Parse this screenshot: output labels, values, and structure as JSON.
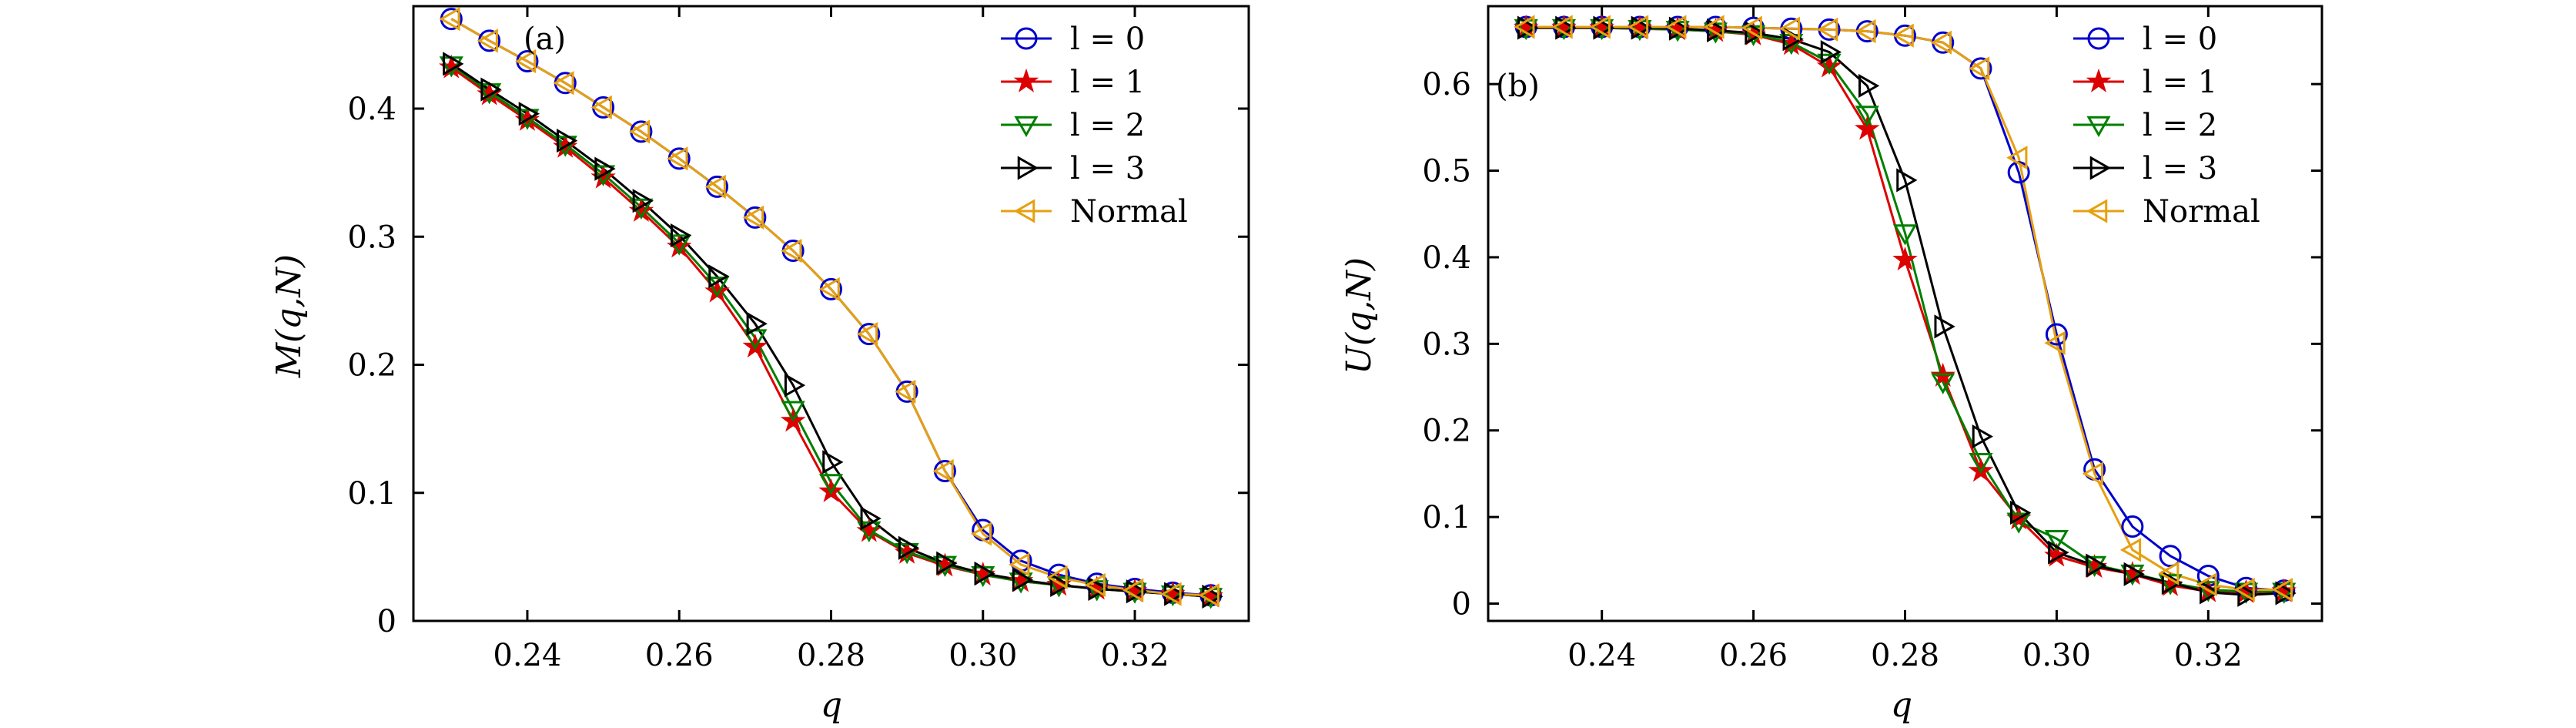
{
  "colors": {
    "l0": "#0000cc",
    "l1": "#dd0000",
    "l2": "#007f00",
    "l3": "#000000",
    "normal": "#e6a010"
  },
  "chart_data": [
    {
      "type": "line",
      "panel_label": "(a)",
      "xlabel": "q",
      "ylabel": "M(q,N)",
      "xlim": [
        0.225,
        0.335
      ],
      "ylim": [
        0.0,
        0.48
      ],
      "xticks": [
        "0.24",
        "0.26",
        "0.28",
        "0.30",
        "0.32"
      ],
      "yticks": [
        "0",
        "0.1",
        "0.2",
        "0.3",
        "0.4"
      ],
      "legend_position": "top-right",
      "x": [
        0.23,
        0.235,
        0.24,
        0.245,
        0.25,
        0.255,
        0.26,
        0.265,
        0.27,
        0.275,
        0.28,
        0.285,
        0.29,
        0.295,
        0.3,
        0.305,
        0.31,
        0.315,
        0.32,
        0.325,
        0.33
      ],
      "series": [
        {
          "name": "l = 0",
          "marker": "circle",
          "color_key": "l0",
          "values": [
            0.47,
            0.453,
            0.437,
            0.42,
            0.401,
            0.382,
            0.361,
            0.339,
            0.315,
            0.289,
            0.259,
            0.224,
            0.179,
            0.117,
            0.071,
            0.047,
            0.036,
            0.029,
            0.025,
            0.022,
            0.02
          ]
        },
        {
          "name": "l = 1",
          "marker": "star",
          "color_key": "l1",
          "values": [
            0.432,
            0.411,
            0.391,
            0.37,
            0.346,
            0.32,
            0.292,
            0.257,
            0.214,
            0.156,
            0.101,
            0.07,
            0.053,
            0.043,
            0.036,
            0.031,
            0.028,
            0.025,
            0.023,
            0.021,
            0.019
          ]
        },
        {
          "name": "l = 2",
          "marker": "triangle-down",
          "color_key": "l2",
          "values": [
            0.434,
            0.413,
            0.393,
            0.372,
            0.349,
            0.323,
            0.295,
            0.262,
            0.221,
            0.165,
            0.108,
            0.071,
            0.054,
            0.044,
            0.036,
            0.031,
            0.028,
            0.025,
            0.023,
            0.021,
            0.019
          ]
        },
        {
          "name": "l = 3",
          "marker": "triangle-right",
          "color_key": "l3",
          "values": [
            0.435,
            0.415,
            0.396,
            0.375,
            0.353,
            0.328,
            0.301,
            0.269,
            0.232,
            0.184,
            0.124,
            0.08,
            0.057,
            0.045,
            0.037,
            0.032,
            0.028,
            0.025,
            0.023,
            0.021,
            0.019
          ]
        },
        {
          "name": "Normal",
          "marker": "triangle-left",
          "color_key": "normal",
          "values": [
            0.47,
            0.453,
            0.437,
            0.42,
            0.401,
            0.382,
            0.361,
            0.339,
            0.315,
            0.289,
            0.259,
            0.224,
            0.179,
            0.117,
            0.068,
            0.044,
            0.034,
            0.028,
            0.024,
            0.021,
            0.02
          ]
        }
      ]
    },
    {
      "type": "line",
      "panel_label": "(b)",
      "xlabel": "q",
      "ylabel": "U(q,N)",
      "xlim": [
        0.225,
        0.335
      ],
      "ylim": [
        -0.02,
        0.69
      ],
      "xticks": [
        "0.24",
        "0.26",
        "0.28",
        "0.30",
        "0.32"
      ],
      "yticks": [
        "0",
        "0.1",
        "0.2",
        "0.3",
        "0.4",
        "0.5",
        "0.6"
      ],
      "legend_position": "top-right",
      "x": [
        0.23,
        0.235,
        0.24,
        0.245,
        0.25,
        0.255,
        0.26,
        0.265,
        0.27,
        0.275,
        0.28,
        0.285,
        0.29,
        0.295,
        0.3,
        0.305,
        0.31,
        0.315,
        0.32,
        0.325,
        0.33
      ],
      "series": [
        {
          "name": "l = 0",
          "marker": "circle",
          "color_key": "l0",
          "values": [
            0.666,
            0.666,
            0.666,
            0.666,
            0.666,
            0.666,
            0.665,
            0.664,
            0.663,
            0.661,
            0.656,
            0.648,
            0.618,
            0.498,
            0.311,
            0.155,
            0.089,
            0.055,
            0.032,
            0.018,
            0.015
          ]
        },
        {
          "name": "l = 1",
          "marker": "star",
          "color_key": "l1",
          "values": [
            0.665,
            0.665,
            0.665,
            0.664,
            0.663,
            0.661,
            0.657,
            0.646,
            0.62,
            0.548,
            0.397,
            0.263,
            0.153,
            0.098,
            0.055,
            0.042,
            0.034,
            0.021,
            0.014,
            0.013,
            0.014
          ]
        },
        {
          "name": "l = 2",
          "marker": "triangle-down",
          "color_key": "l2",
          "values": [
            0.665,
            0.665,
            0.665,
            0.664,
            0.663,
            0.661,
            0.658,
            0.648,
            0.625,
            0.565,
            0.428,
            0.256,
            0.164,
            0.095,
            0.075,
            0.045,
            0.035,
            0.024,
            0.016,
            0.014,
            0.014
          ]
        },
        {
          "name": "l = 3",
          "marker": "triangle-right",
          "color_key": "l3",
          "values": [
            0.665,
            0.665,
            0.665,
            0.665,
            0.664,
            0.662,
            0.659,
            0.652,
            0.637,
            0.598,
            0.489,
            0.32,
            0.193,
            0.105,
            0.059,
            0.044,
            0.034,
            0.024,
            0.013,
            0.01,
            0.012
          ]
        },
        {
          "name": "Normal",
          "marker": "triangle-left",
          "color_key": "normal",
          "values": [
            0.666,
            0.666,
            0.666,
            0.666,
            0.666,
            0.666,
            0.665,
            0.664,
            0.663,
            0.661,
            0.656,
            0.648,
            0.618,
            0.515,
            0.301,
            0.15,
            0.062,
            0.035,
            0.022,
            0.016,
            0.016
          ]
        }
      ]
    }
  ]
}
